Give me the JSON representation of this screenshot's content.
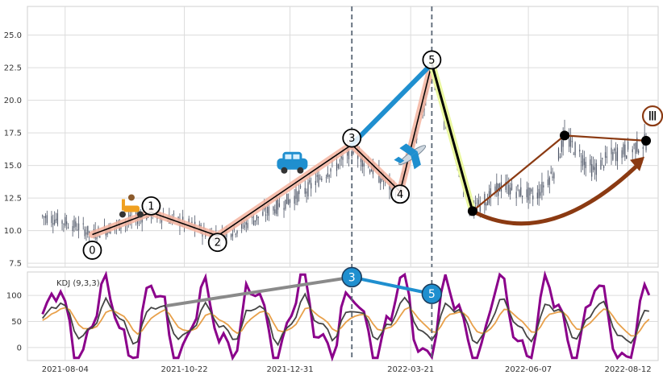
{
  "chart_data": [
    {
      "type": "line",
      "subtype": "candlestick-with-elliott-wave",
      "x_ticks": [
        "2021-08-04",
        "2021-10-22",
        "2021-12-31",
        "2022-03-21",
        "2022-06-07",
        "2022-08-12"
      ],
      "x_tick_dates": [
        "2021-08-04",
        "2021-10-22",
        "2021-12-31",
        "2022-03-21",
        "2022-06-07",
        "2022-08-12"
      ],
      "xlim": [
        "2021-07-10",
        "2022-09-01"
      ],
      "y_ticks": [
        "7.5",
        "10.0",
        "12.5",
        "15.0",
        "17.5",
        "20.0",
        "22.5",
        "25.0"
      ],
      "ylim": [
        7.2,
        27.2
      ],
      "grid": true,
      "price_path": [
        [
          "2021-07-20",
          11.1
        ],
        [
          "2021-07-28",
          10.9
        ],
        [
          "2021-08-05",
          10.6
        ],
        [
          "2021-08-15",
          10.2
        ],
        [
          "2021-08-22",
          9.7
        ],
        [
          "2021-09-05",
          10.3
        ],
        [
          "2021-09-18",
          10.8
        ],
        [
          "2021-09-30",
          11.4
        ],
        [
          "2021-10-10",
          11.0
        ],
        [
          "2021-10-22",
          10.6
        ],
        [
          "2021-11-05",
          9.9
        ],
        [
          "2021-11-13",
          9.6
        ],
        [
          "2021-11-25",
          10.1
        ],
        [
          "2021-12-08",
          10.9
        ],
        [
          "2021-12-20",
          11.7
        ],
        [
          "2021-12-31",
          12.4
        ],
        [
          "2022-01-12",
          13.2
        ],
        [
          "2022-01-25",
          14.6
        ],
        [
          "2022-02-05",
          15.4
        ],
        [
          "2022-02-10",
          16.6
        ],
        [
          "2022-02-18",
          15.4
        ],
        [
          "2022-02-28",
          14.2
        ],
        [
          "2022-03-08",
          13.3
        ],
        [
          "2022-03-14",
          13.0
        ],
        [
          "2022-03-21",
          16.0
        ],
        [
          "2022-03-28",
          18.8
        ],
        [
          "2022-04-04",
          22.8
        ],
        [
          "2022-04-11",
          19.4
        ],
        [
          "2022-04-18",
          16.2
        ],
        [
          "2022-04-25",
          13.8
        ],
        [
          "2022-05-01",
          11.5
        ],
        [
          "2022-05-10",
          12.4
        ],
        [
          "2022-05-20",
          13.4
        ],
        [
          "2022-06-01",
          13.0
        ],
        [
          "2022-06-12",
          12.6
        ],
        [
          "2022-06-24",
          14.6
        ],
        [
          "2022-07-01",
          17.2
        ],
        [
          "2022-07-10",
          16.0
        ],
        [
          "2022-07-20",
          14.6
        ],
        [
          "2022-08-01",
          15.8
        ],
        [
          "2022-08-12",
          16.2
        ],
        [
          "2022-08-24",
          16.8
        ]
      ],
      "wave_points": [
        {
          "label": "0",
          "date": "2021-08-22",
          "price": 9.7,
          "label_price": 8.5
        },
        {
          "label": "1",
          "date": "2021-09-30",
          "price": 11.4,
          "label_price": 11.9
        },
        {
          "label": "2",
          "date": "2021-11-13",
          "price": 9.6,
          "label_price": 9.1
        },
        {
          "label": "3",
          "date": "2022-02-10",
          "price": 16.6,
          "label_price": 17.1
        },
        {
          "label": "4",
          "date": "2022-03-14",
          "price": 13.0,
          "label_price": 12.8
        },
        {
          "label": "5",
          "date": "2022-04-04",
          "price": 22.8,
          "label_price": 23.1
        }
      ],
      "vertical_markers": [
        "2022-02-10",
        "2022-04-04"
      ],
      "correction_points": [
        {
          "date": "2022-05-01",
          "price": 11.5
        },
        {
          "date": "2022-07-01",
          "price": 17.3
        },
        {
          "date": "2022-08-24",
          "price": 16.9
        }
      ],
      "badge": {
        "label": "Ⅲ",
        "date": "2022-08-24",
        "price": 18.8
      },
      "icons": [
        "scooter-icon",
        "car-icon",
        "airplane-icon"
      ],
      "colors": {
        "candles": "#4d5566",
        "wave_line": "#000000",
        "wave_glow": "#f4b4a0",
        "blue": "#1f8fcf",
        "yellow": "#eaf7a0",
        "brown": "#8b3a12",
        "marker": "#5a6675"
      }
    },
    {
      "type": "line",
      "title": "KDJ (9,3,3)",
      "y_ticks": [
        "0",
        "50",
        "100"
      ],
      "ylim": [
        -25,
        145
      ],
      "grid": true,
      "series": [
        {
          "key": "J",
          "color": "#8b008b"
        },
        {
          "key": "D",
          "color": "#e8a04a"
        },
        {
          "key": "K",
          "color": "#444444"
        }
      ],
      "divergence": [
        {
          "date": "2021-10-10",
          "value": 80
        },
        {
          "date": "2022-02-10",
          "value": 135,
          "label": "3"
        },
        {
          "date": "2022-04-04",
          "value": 103,
          "label": "5"
        }
      ],
      "colors": {
        "divergence_grey": "#8a8a8a",
        "divergence_blue": "#1f8fcf"
      }
    }
  ]
}
